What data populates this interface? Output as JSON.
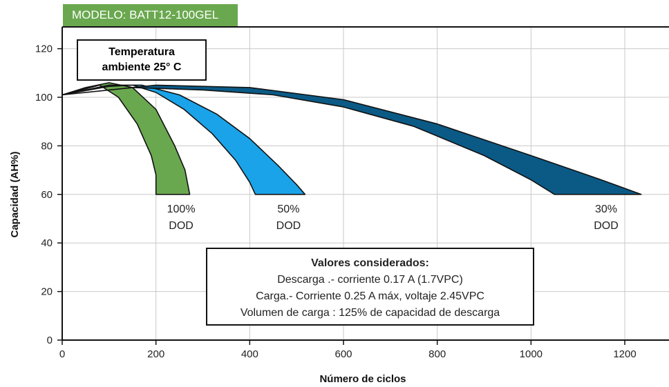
{
  "model_tag": "MODELO: BATT12-100GEL",
  "temperature_note": [
    "Temperatura",
    "ambiente 25° C"
  ],
  "conditions": {
    "title": "Valores considerados:",
    "lines": [
      "Descarga .- corriente 0.17 A (1.7VPC)",
      "Carga.- Corriente 0.25 A máx, voltaje 2.45VPC",
      "Volumen de carga : 125% de capacidad de descarga"
    ]
  },
  "colors": {
    "model_tag": "#6aa84f",
    "dod_100": "#6aa84f",
    "dod_50": "#1aa3e8",
    "dod_30": "#0b5a86",
    "axes": "#111111",
    "grid": "#c8c8c8"
  },
  "chart_data": {
    "type": "area",
    "title": "",
    "xlabel": "Número de ciclos",
    "ylabel": "Capacidad (AH%)",
    "xlim": [
      0,
      1280
    ],
    "ylim": [
      0,
      120
    ],
    "x_ticks": [
      0,
      200,
      400,
      600,
      800,
      1000,
      1200
    ],
    "y_ticks": [
      0,
      20,
      40,
      60,
      80,
      100,
      120
    ],
    "grid": true,
    "series": [
      {
        "label": [
          "100%",
          "DOD"
        ],
        "color_key": "dod_100",
        "upper": [
          [
            0,
            101
          ],
          [
            50,
            104
          ],
          [
            100,
            106
          ],
          [
            150,
            104
          ],
          [
            200,
            95
          ],
          [
            240,
            80
          ],
          [
            262,
            70
          ],
          [
            272,
            60
          ]
        ],
        "lower": [
          [
            0,
            101
          ],
          [
            80,
            105
          ],
          [
            120,
            100
          ],
          [
            160,
            89
          ],
          [
            190,
            76
          ],
          [
            200,
            68
          ],
          [
            200,
            60
          ]
        ]
      },
      {
        "label": [
          "50%",
          "DOD"
        ],
        "color_key": "dod_50",
        "upper": [
          [
            0,
            101
          ],
          [
            100,
            105
          ],
          [
            170,
            105
          ],
          [
            250,
            101
          ],
          [
            330,
            93
          ],
          [
            400,
            83
          ],
          [
            460,
            72
          ],
          [
            500,
            64
          ],
          [
            518,
            60
          ]
        ],
        "lower": [
          [
            0,
            101
          ],
          [
            100,
            104.5
          ],
          [
            150,
            105
          ],
          [
            200,
            102
          ],
          [
            260,
            95
          ],
          [
            320,
            85
          ],
          [
            370,
            74
          ],
          [
            400,
            65
          ],
          [
            412,
            60
          ]
        ]
      },
      {
        "label": [
          "30%",
          "DOD"
        ],
        "color_key": "dod_30",
        "upper": [
          [
            0,
            101
          ],
          [
            200,
            105
          ],
          [
            400,
            104
          ],
          [
            600,
            99
          ],
          [
            800,
            89
          ],
          [
            1000,
            76
          ],
          [
            1150,
            66
          ],
          [
            1235,
            60
          ]
        ],
        "lower": [
          [
            0,
            101
          ],
          [
            150,
            104
          ],
          [
            300,
            103
          ],
          [
            450,
            101
          ],
          [
            600,
            96
          ],
          [
            750,
            88
          ],
          [
            900,
            76
          ],
          [
            1000,
            66
          ],
          [
            1050,
            60
          ]
        ]
      }
    ]
  }
}
